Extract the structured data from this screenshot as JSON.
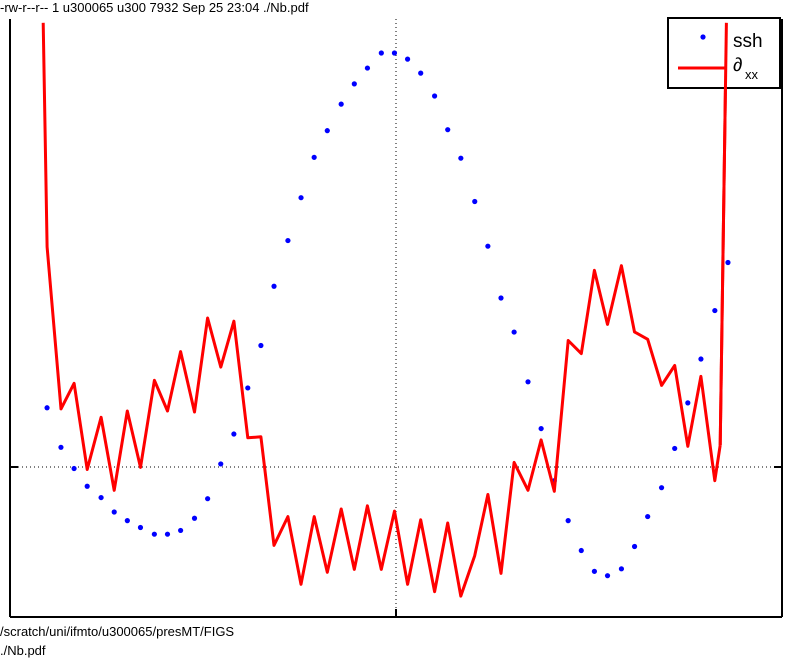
{
  "header": {
    "file_info": "-rw-r--r-- 1 u300065 u300 7932 Sep 25 23:04 ./Nb.pdf"
  },
  "footer": {
    "path_line": "/scratch/uni/ifmto/u300065/presMT/FIGS",
    "file_line": "./Nb.pdf"
  },
  "colors": {
    "ssh": "#0000ff",
    "dxx": "#ff0000",
    "axis": "#000000",
    "grid": "#000000"
  },
  "chart_data": {
    "type": "line",
    "title": "",
    "xlabel": "",
    "ylabel": "",
    "xlim": [
      0,
      100
    ],
    "ylim": [
      -100,
      300
    ],
    "grid": "dotted zero lines at x=50 and y=0",
    "legend_position": "top-right",
    "legend": [
      {
        "label": "ssh",
        "style": "dots"
      },
      {
        "label": "∂",
        "sub": "xx",
        "style": "line"
      }
    ],
    "series": [
      {
        "name": "ssh",
        "style": "dots",
        "x": [
          4.8,
          6.6,
          8.3,
          10.0,
          11.8,
          13.5,
          15.2,
          16.9,
          18.7,
          20.4,
          22.1,
          23.9,
          25.6,
          27.3,
          29.0,
          30.8,
          32.5,
          34.2,
          36.0,
          37.7,
          39.4,
          41.1,
          42.9,
          44.6,
          46.3,
          48.1,
          49.8,
          51.5,
          53.2,
          55.0,
          56.7,
          58.4,
          60.2,
          61.9,
          63.6,
          65.3,
          67.1,
          68.8,
          70.5,
          72.3,
          74.0,
          75.7,
          77.4,
          79.2,
          80.9,
          82.6,
          84.4,
          86.1,
          87.8,
          89.5,
          91.3,
          93.0
        ],
        "values": [
          42.4,
          14.1,
          -1.1,
          -13.8,
          -21.9,
          -32.2,
          -38.4,
          -43.3,
          -48.1,
          -48.1,
          -45.4,
          -36.7,
          -22.7,
          2.2,
          23.6,
          56.6,
          87.0,
          129.4,
          162.1,
          192.8,
          221.7,
          240.8,
          259.8,
          274.3,
          285.6,
          296.4,
          296.4,
          292.0,
          282.0,
          265.6,
          241.5,
          221.1,
          190.1,
          158.1,
          121.0,
          96.6,
          61.0,
          27.5,
          -9.8,
          -38.4,
          -59.8,
          -74.7,
          -77.8,
          -72.9,
          -56.9,
          -35.5,
          -14.8,
          13.3,
          45.9,
          77.3,
          112.0,
          146.4
        ]
      },
      {
        "name": "∂xx",
        "style": "line",
        "x": [
          4.3,
          4.8,
          6.6,
          8.3,
          10.0,
          11.8,
          13.5,
          15.2,
          16.9,
          18.7,
          20.4,
          22.1,
          23.9,
          25.6,
          27.3,
          29.0,
          30.8,
          32.5,
          34.2,
          36.0,
          37.7,
          39.4,
          41.1,
          42.9,
          44.6,
          46.3,
          48.1,
          49.8,
          51.5,
          53.2,
          55.0,
          56.7,
          58.4,
          60.2,
          61.9,
          63.6,
          65.3,
          67.1,
          68.8,
          70.5,
          72.3,
          74.0,
          75.7,
          77.4,
          79.2,
          80.9,
          82.6,
          84.4,
          86.1,
          87.8,
          89.5,
          91.3,
          92.0
        ],
        "values": [
          318,
          157.6,
          41.6,
          59.9,
          -1.8,
          35.6,
          -16.7,
          40.1,
          -0.3,
          62.1,
          40.1,
          82.6,
          39.4,
          106.7,
          71.5,
          104.4,
          20.9,
          21.6,
          -56.1,
          -35.5,
          -84.0,
          -35.5,
          -75.4,
          -30.1,
          -73.3,
          -27.8,
          -73.3,
          -31.6,
          -84.0,
          -37.8,
          -89.3,
          -40.1,
          -92.4,
          -63.5,
          -19.7,
          -76.2,
          3.3,
          -16.7,
          19.4,
          -17.4,
          90.6,
          81.2,
          140.8,
          102.1,
          144.1,
          96.7,
          91.4,
          58.4,
          72.7,
          14.8,
          64.9,
          -9.8,
          15.7
        ]
      },
      {
        "name": "",
        "style": "line",
        "x": [
          92.0,
          92.8
        ],
        "values": [
          15.7,
          318
        ]
      }
    ]
  }
}
